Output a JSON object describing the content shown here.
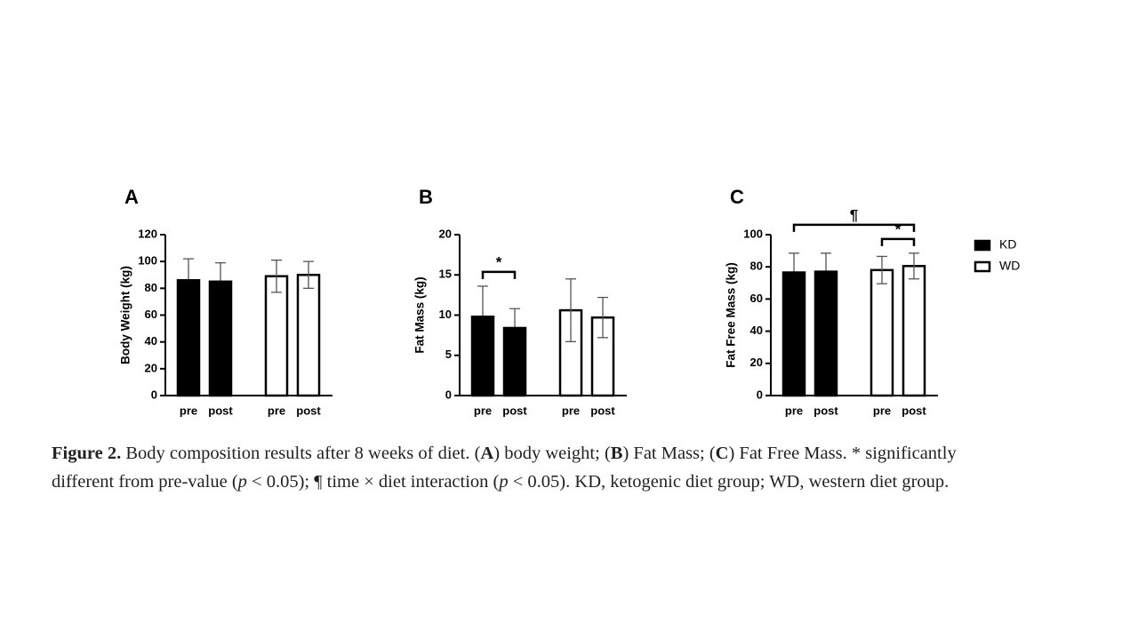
{
  "chart_data": [
    {
      "type": "bar",
      "panel": "A",
      "ylabel": "Body Weight (kg)",
      "categories": [
        "pre",
        "post",
        "pre",
        "post"
      ],
      "series": [
        {
          "name": "KD",
          "color": "#000000",
          "values": [
            86,
            85,
            null,
            null
          ],
          "errors": [
            16,
            14,
            null,
            null
          ]
        },
        {
          "name": "WD",
          "color": "#ffffff",
          "values": [
            null,
            null,
            89,
            90
          ],
          "errors": [
            null,
            null,
            12,
            10
          ]
        }
      ],
      "ylim": [
        0,
        120
      ],
      "yticks": [
        0,
        20,
        40,
        60,
        80,
        100,
        120
      ],
      "annotations": []
    },
    {
      "type": "bar",
      "panel": "B",
      "ylabel": "Fat Mass (kg)",
      "categories": [
        "pre",
        "post",
        "pre",
        "post"
      ],
      "series": [
        {
          "name": "KD",
          "color": "#000000",
          "values": [
            9.8,
            8.4,
            null,
            null
          ],
          "errors": [
            3.8,
            2.4,
            null,
            null
          ]
        },
        {
          "name": "WD",
          "color": "#ffffff",
          "values": [
            null,
            null,
            10.6,
            9.7
          ],
          "errors": [
            null,
            null,
            3.9,
            2.5
          ]
        }
      ],
      "ylim": [
        0,
        20
      ],
      "yticks": [
        0,
        5,
        10,
        15,
        20
      ],
      "annotations": [
        {
          "text": "*",
          "between": [
            0,
            1
          ]
        }
      ]
    },
    {
      "type": "bar",
      "panel": "C",
      "ylabel": "Fat Free Mass (kg)",
      "categories": [
        "pre",
        "post",
        "pre",
        "post"
      ],
      "series": [
        {
          "name": "KD",
          "color": "#000000",
          "values": [
            76.5,
            77,
            null,
            null
          ],
          "errors": [
            12,
            11.5,
            null,
            null
          ]
        },
        {
          "name": "WD",
          "color": "#ffffff",
          "values": [
            null,
            null,
            78,
            80.5
          ],
          "errors": [
            null,
            null,
            8.5,
            8
          ]
        }
      ],
      "ylim": [
        0,
        100
      ],
      "yticks": [
        0,
        20,
        40,
        60,
        80,
        100
      ],
      "annotations": [
        {
          "text": "*",
          "between": [
            2,
            3
          ]
        },
        {
          "text": "¶",
          "between": [
            0,
            3
          ]
        }
      ],
      "legend": true
    }
  ],
  "caption": {
    "lines": [
      [
        {
          "text": "Figure 2.",
          "bold": true
        },
        {
          "text": " Body composition results after 8 weeks of diet. ("
        },
        {
          "text": "A",
          "bold": true
        },
        {
          "text": ") body weight; ("
        },
        {
          "text": "B",
          "bold": true
        },
        {
          "text": ") Fat Mass; ("
        },
        {
          "text": "C",
          "bold": true
        },
        {
          "text": ") Fat Free Mass. * significantly"
        }
      ],
      [
        {
          "text": "different from pre-value ("
        },
        {
          "text": "p",
          "italic": true
        },
        {
          "text": " < 0.05); ¶ time × diet interaction ("
        },
        {
          "text": "p",
          "italic": true
        },
        {
          "text": " < 0.05). KD, ketogenic diet group; WD, western diet group."
        }
      ]
    ]
  }
}
